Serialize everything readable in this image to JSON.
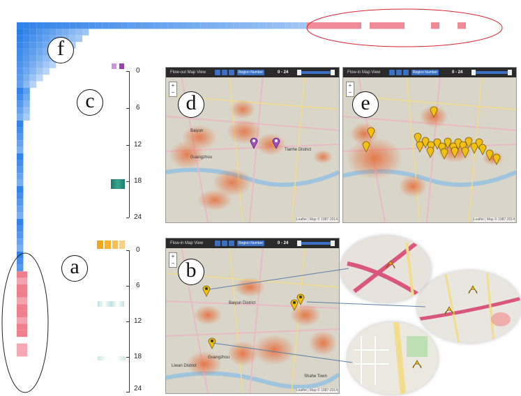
{
  "labels": {
    "a": "a",
    "b": "b",
    "c": "c",
    "d": "d",
    "e": "e",
    "f": "f"
  },
  "axis_top": {
    "ticks": [
      "0",
      "6",
      "12",
      "18",
      "24"
    ]
  },
  "axis_bottom": {
    "ticks": [
      "0",
      "6",
      "12",
      "18",
      "24"
    ]
  },
  "map_d": {
    "title": "Flow-out Map View",
    "region_select": "Region Number",
    "range": "0 - 24",
    "credit": "Leaflet | Map © 1987-2014",
    "places": [
      "Baiyun",
      "Guangzhou",
      "Tianhe District"
    ]
  },
  "map_e": {
    "title": "Flow-in Map View",
    "region_select": "Region Number",
    "range": "0 - 24",
    "credit": "Leaflet | Map © 1987-2014"
  },
  "map_b": {
    "title": "Flow-in Map View",
    "region_select": "Region Number",
    "range": "0 - 24",
    "credit": "Leaflet | Map © 1987-2014",
    "places": [
      "Baiyun District",
      "Guangzhou",
      "Liwan District",
      "Shahe Town"
    ]
  },
  "colors": {
    "blue": "#3f8fe8",
    "pink": "#f07f8c",
    "purple": "#a050c0",
    "teal": "#1a8a7a",
    "orange": "#f2a71a",
    "heat": "#e8622a"
  }
}
